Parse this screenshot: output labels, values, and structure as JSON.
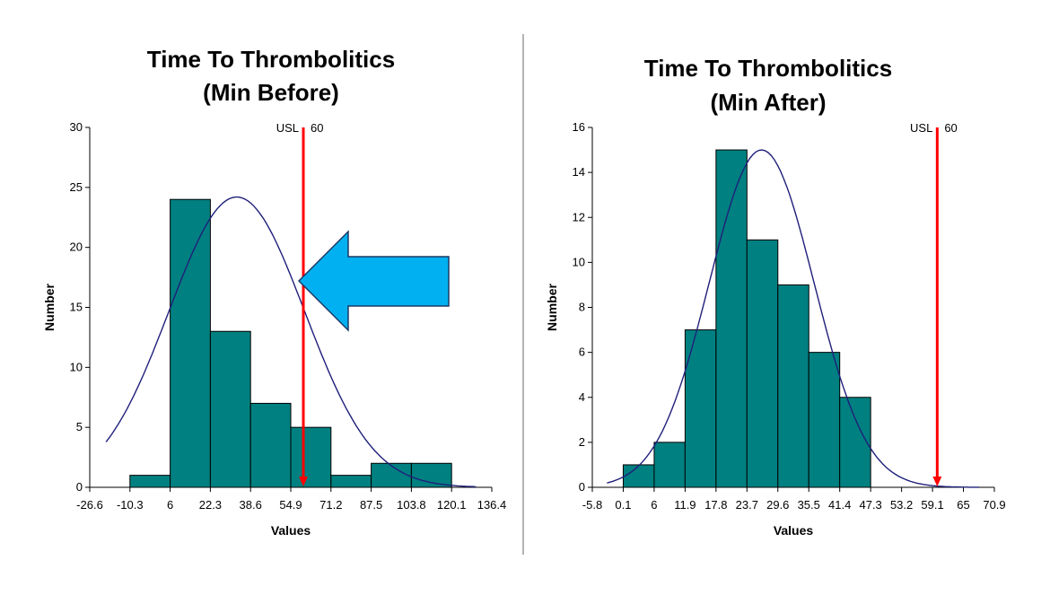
{
  "chart_data": [
    {
      "type": "bar",
      "title_lines": [
        "Time To Thrombolitics",
        "(Min Before)"
      ],
      "xlabel": "Values",
      "ylabel": "Number",
      "ylim": [
        0,
        30
      ],
      "y_ticks": [
        "0",
        "5",
        "10",
        "15",
        "20",
        "25",
        "30"
      ],
      "x_ticks": [
        "-26.6",
        "-10.3",
        "6",
        "22.3",
        "38.6",
        "54.9",
        "71.2",
        "87.5",
        "103.8",
        "120.1",
        "136.4"
      ],
      "bins": [
        {
          "start": "-10.3",
          "end": "6",
          "value": 1
        },
        {
          "start": "6",
          "end": "22.3",
          "value": 24
        },
        {
          "start": "22.3",
          "end": "38.6",
          "value": 13
        },
        {
          "start": "38.6",
          "end": "54.9",
          "value": 7
        },
        {
          "start": "54.9",
          "end": "71.2",
          "value": 5
        },
        {
          "start": "71.2",
          "end": "87.5",
          "value": 1
        },
        {
          "start": "87.5",
          "end": "103.8",
          "value": 2
        },
        {
          "start": "103.8",
          "end": "120.1",
          "value": 2
        }
      ],
      "normal_curve": {
        "peak_x": 33,
        "peak_y": 24.2,
        "sigma": 27.5
      },
      "usl": {
        "label": "USL",
        "value": 60,
        "value_label": "60",
        "color": "#ff0000"
      },
      "annotation": {
        "shape": "arrow-left",
        "fill": "#00b0f0",
        "stroke": "#1f3864"
      },
      "bar_color": "#008080",
      "curve_color": "#1f1f7a"
    },
    {
      "type": "bar",
      "title_lines": [
        "Time To Thrombolitics",
        "(Min After)"
      ],
      "xlabel": "Values",
      "ylabel": "Number",
      "ylim": [
        0,
        16
      ],
      "y_ticks": [
        "0",
        "2",
        "4",
        "6",
        "8",
        "10",
        "12",
        "14",
        "16"
      ],
      "x_ticks": [
        "-5.8",
        "0.1",
        "6",
        "11.9",
        "17.8",
        "23.7",
        "29.6",
        "35.5",
        "41.4",
        "47.3",
        "53.2",
        "59.1",
        "65",
        "70.9"
      ],
      "bins": [
        {
          "start": "0.1",
          "end": "6",
          "value": 1
        },
        {
          "start": "6",
          "end": "11.9",
          "value": 2
        },
        {
          "start": "11.9",
          "end": "17.8",
          "value": 7
        },
        {
          "start": "17.8",
          "end": "23.7",
          "value": 15
        },
        {
          "start": "23.7",
          "end": "29.6",
          "value": 11
        },
        {
          "start": "29.6",
          "end": "35.5",
          "value": 9
        },
        {
          "start": "35.5",
          "end": "41.4",
          "value": 6
        },
        {
          "start": "41.4",
          "end": "47.3",
          "value": 4
        }
      ],
      "normal_curve": {
        "peak_x": 26.5,
        "peak_y": 15,
        "sigma": 10
      },
      "usl": {
        "label": "USL",
        "value": 60,
        "value_label": "60",
        "color": "#ff0000"
      },
      "bar_color": "#008080",
      "curve_color": "#1f1f7a"
    }
  ]
}
